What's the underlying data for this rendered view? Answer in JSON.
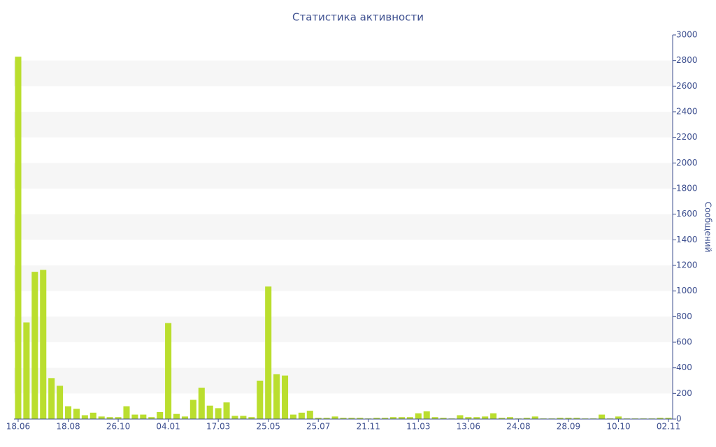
{
  "chart_data": {
    "type": "bar",
    "title": "Статистика активности",
    "y_axis_label": "Сообщений",
    "categories": [
      "18.06",
      null,
      null,
      null,
      null,
      null,
      "18.08",
      null,
      null,
      null,
      null,
      null,
      "26.10",
      null,
      null,
      null,
      null,
      null,
      "04.01",
      null,
      null,
      null,
      null,
      null,
      "17.03",
      null,
      null,
      null,
      null,
      null,
      "25.05",
      null,
      null,
      null,
      null,
      null,
      "25.07",
      null,
      null,
      null,
      null,
      null,
      "21.11",
      null,
      null,
      null,
      null,
      null,
      "11.03",
      null,
      null,
      null,
      null,
      null,
      "13.06",
      null,
      null,
      null,
      null,
      null,
      "24.08",
      null,
      null,
      null,
      null,
      null,
      "28.09",
      null,
      null,
      null,
      null,
      null,
      "10.10",
      null,
      null,
      null,
      null,
      null,
      "02.11"
    ],
    "values": [
      2830,
      755,
      1150,
      1165,
      320,
      260,
      100,
      80,
      30,
      50,
      20,
      15,
      15,
      100,
      35,
      35,
      15,
      55,
      750,
      40,
      20,
      150,
      245,
      105,
      85,
      130,
      25,
      25,
      15,
      300,
      1035,
      350,
      340,
      35,
      50,
      65,
      10,
      10,
      20,
      10,
      10,
      10,
      5,
      10,
      10,
      15,
      15,
      15,
      45,
      60,
      15,
      10,
      5,
      30,
      15,
      15,
      20,
      45,
      10,
      15,
      5,
      10,
      20,
      5,
      5,
      10,
      10,
      10,
      5,
      5,
      35,
      5,
      20,
      5,
      5,
      5,
      5,
      10,
      10
    ],
    "color": "#bade2e",
    "ylim": [
      0,
      3000
    ],
    "yticks": [
      0,
      200,
      400,
      600,
      800,
      1000,
      1200,
      1400,
      1600,
      1800,
      2000,
      2200,
      2400,
      2600,
      2800,
      3000
    ],
    "grid": true
  }
}
